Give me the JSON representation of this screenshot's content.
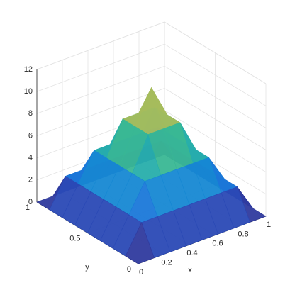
{
  "chart_data": {
    "type": "surface3d",
    "x_label": "x",
    "y_label": "y",
    "x": [
      0,
      0.125,
      0.25,
      0.375,
      0.5,
      0.625,
      0.75,
      0.875,
      1
    ],
    "y": [
      0,
      0.125,
      0.25,
      0.375,
      0.5,
      0.625,
      0.75,
      0.875,
      1
    ],
    "z": [
      [
        0,
        0,
        0,
        0,
        0,
        0,
        0,
        0,
        0
      ],
      [
        0,
        2.5,
        2.5,
        2.5,
        2.5,
        2.5,
        2.5,
        2.5,
        0
      ],
      [
        0,
        2.5,
        5,
        5,
        5,
        5,
        5,
        2.5,
        0
      ],
      [
        0,
        2.5,
        5,
        8,
        8,
        8,
        5,
        2.5,
        0
      ],
      [
        0,
        2.5,
        5,
        8,
        11,
        8,
        5,
        2.5,
        0
      ],
      [
        0,
        2.5,
        5,
        8,
        8,
        8,
        5,
        2.5,
        0
      ],
      [
        0,
        2.5,
        5,
        5,
        5,
        5,
        5,
        2.5,
        0
      ],
      [
        0,
        2.5,
        2.5,
        2.5,
        2.5,
        2.5,
        2.5,
        2.5,
        0
      ],
      [
        0,
        0,
        0,
        0,
        0,
        0,
        0,
        0,
        0
      ]
    ],
    "xlim": [
      0,
      1
    ],
    "ylim": [
      0,
      1
    ],
    "zlim": [
      0,
      12
    ],
    "xticks": [
      0,
      0.2,
      0.4,
      0.6,
      0.8,
      1
    ],
    "yticks": [
      0,
      0.5,
      1
    ],
    "zticks": [
      0,
      2,
      4,
      6,
      8,
      10,
      12
    ],
    "grid": true,
    "colormap": [
      "#352a87",
      "#1f66e0",
      "#0fa3c8",
      "#4bbf7e",
      "#d6bb4a",
      "#f9fb0e"
    ]
  }
}
